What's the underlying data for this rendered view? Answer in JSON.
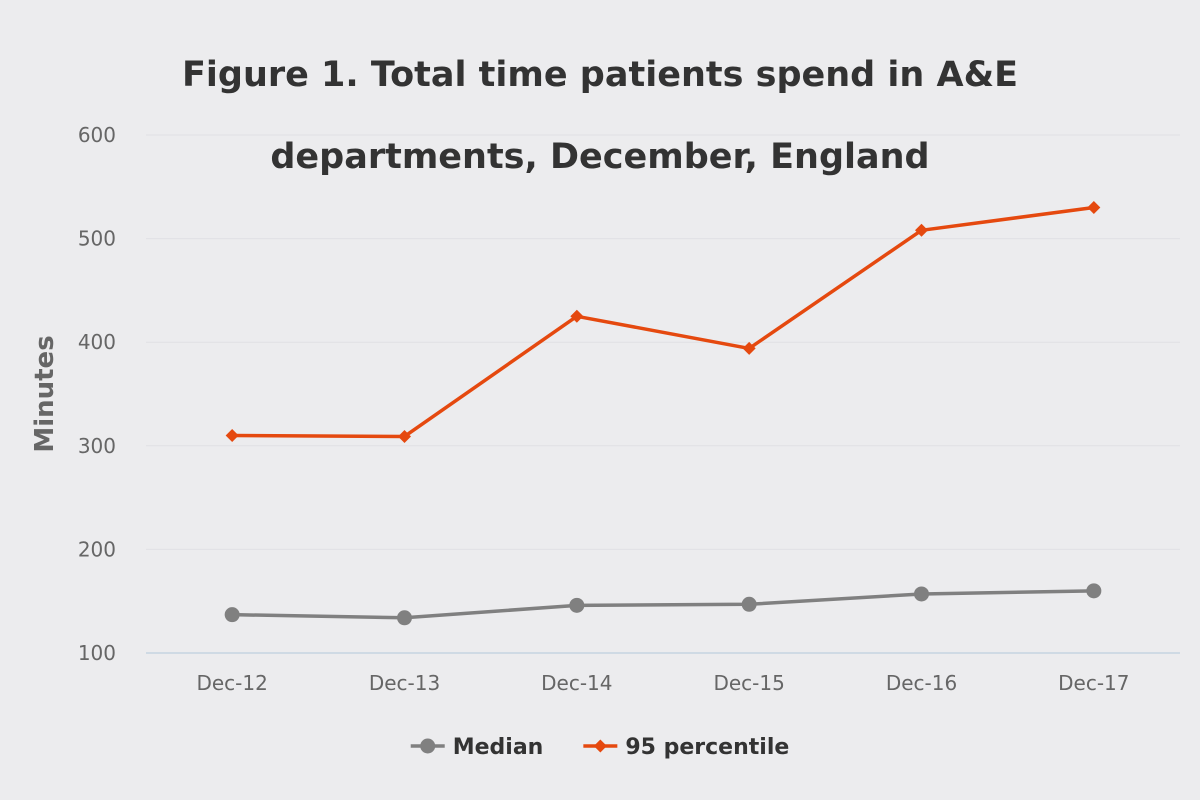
{
  "chart_data": {
    "type": "line",
    "title_lines": [
      "Figure 1. Total time patients spend in A&E",
      "departments, December, England"
    ],
    "xlabel": "",
    "ylabel": "Minutes",
    "categories": [
      "Dec-12",
      "Dec-13",
      "Dec-14",
      "Dec-15",
      "Dec-16",
      "Dec-17"
    ],
    "ylim": [
      100,
      600
    ],
    "yticks": [
      100,
      200,
      300,
      400,
      500,
      600
    ],
    "grid": true,
    "legend_position": "bottom",
    "series": [
      {
        "name": "Median",
        "values": [
          137,
          134,
          146,
          147,
          157,
          160
        ],
        "color": "#808080",
        "marker": "circle"
      },
      {
        "name": "95 percentile",
        "values": [
          310,
          309,
          425,
          394,
          508,
          530
        ],
        "color": "#e5490f",
        "marker": "diamond"
      }
    ]
  }
}
